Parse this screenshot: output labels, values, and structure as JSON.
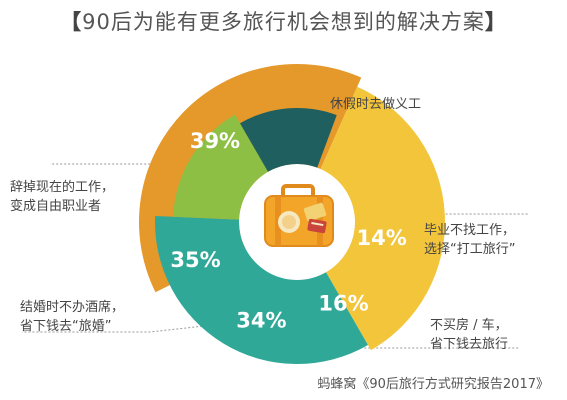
{
  "title": "90后为能有更多旅行机会想到的解决方案",
  "title_open": "【",
  "title_close": "】",
  "source": "蚂蜂窝《90后旅行方式研究报告2017》",
  "chart_data": {
    "type": "radial bar",
    "title": "90后为能有更多旅行机会想到的解决方案",
    "categories": [
      "休假时去做义工",
      "辞掉现在的工作，变成自由职业者",
      "结婚时不办酒席，省下钱去“旅婚”",
      "不买房 / 车，省下钱去旅行",
      "毕业不找工作，选择“打工旅行”"
    ],
    "series": [
      {
        "values": [
          39,
          35,
          34,
          16,
          14
        ],
        "labels": [
          "39%",
          "35%",
          "34%",
          "16%",
          "14%"
        ],
        "colors": [
          "#e4992a",
          "#f3c53a",
          "#2fa898",
          "#8ebf45",
          "#1f5f60"
        ]
      }
    ],
    "unit": "%"
  },
  "labels": {
    "l0": [
      "休假时去做义工"
    ],
    "l1": [
      "辞掉现在的工作，",
      "变成自由职业者"
    ],
    "l2": [
      "结婚时不办酒席，",
      "省下钱去“旅婚”"
    ],
    "l3": [
      "不买房 / 车，",
      "省下钱去旅行"
    ],
    "l4": [
      "毕业不找工作，",
      "选择“打工旅行”"
    ]
  },
  "center_icon": "suitcase-icon"
}
